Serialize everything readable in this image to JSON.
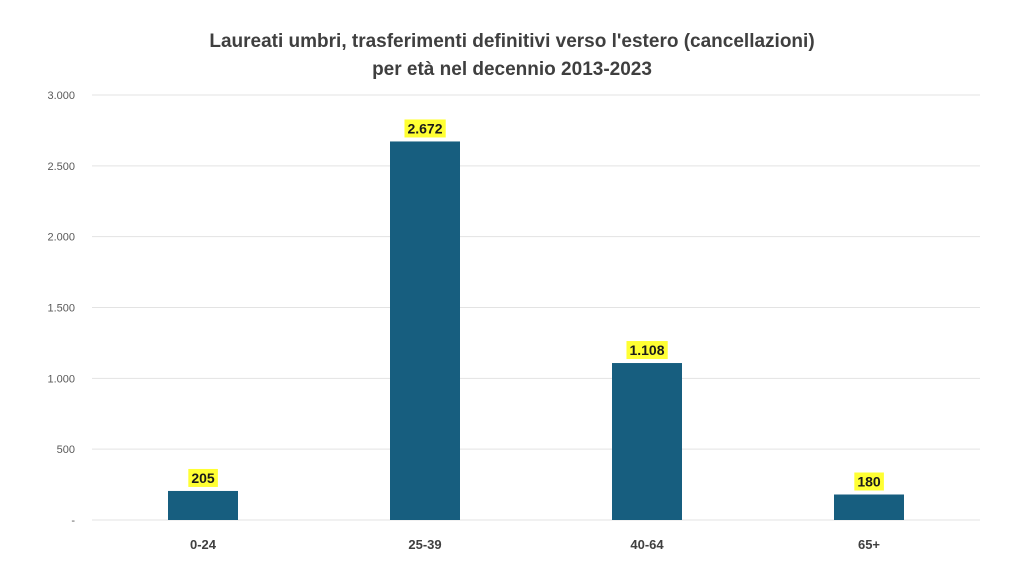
{
  "chart_data": {
    "type": "bar",
    "title_line1": "Laureati umbri, trasferimenti definitivi verso l'estero (cancellazioni)",
    "title_line2": "per età nel decennio 2013-2023",
    "categories": [
      "0-24",
      "25-39",
      "40-64",
      "65+"
    ],
    "values": [
      205,
      2672,
      1108,
      180
    ],
    "data_labels": [
      "205",
      "2.672",
      "1.108",
      "180"
    ],
    "ylim": [
      0,
      3000
    ],
    "yticks": [
      0,
      500,
      1000,
      1500,
      2000,
      2500,
      3000
    ],
    "ytick_labels": [
      "-",
      "500",
      "1.000",
      "1.500",
      "2.000",
      "2.500",
      "3.000"
    ],
    "grid": true,
    "bar_color": "#175e7f",
    "label_highlight_color": "#ffff33",
    "gridline_color": "#e3e3e3"
  }
}
